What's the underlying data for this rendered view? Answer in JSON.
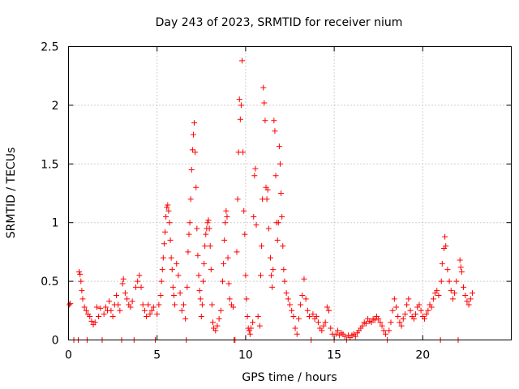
{
  "chart_data": {
    "type": "scatter",
    "title": "Day 243 of 2023, SRMTID for receiver nium",
    "xlabel": "GPS time / hours",
    "ylabel": "SRMTID / TECUs",
    "xlim": [
      0,
      25
    ],
    "ylim": [
      0,
      2.5
    ],
    "xticks": [
      "0",
      "5",
      "10",
      "15",
      "20"
    ],
    "xtick_values": [
      0,
      5,
      10,
      15,
      20
    ],
    "yticks": [
      "0",
      "0.5",
      "1",
      "1.5",
      "2",
      "2.5"
    ],
    "ytick_values": [
      0,
      0.5,
      1,
      1.5,
      2,
      2.5
    ],
    "grid": true,
    "marker": "+",
    "color": "#ff0000",
    "series": [
      {
        "name": "SRMTID",
        "points": [
          [
            0.05,
            0.3
          ],
          [
            0.1,
            0.31
          ],
          [
            0.3,
            0.0
          ],
          [
            0.55,
            0.0
          ],
          [
            0.6,
            0.58
          ],
          [
            0.65,
            0.56
          ],
          [
            0.7,
            0.5
          ],
          [
            0.75,
            0.42
          ],
          [
            0.8,
            0.35
          ],
          [
            0.9,
            0.28
          ],
          [
            1.0,
            0.25
          ],
          [
            1.05,
            0.0
          ],
          [
            1.1,
            0.22
          ],
          [
            1.2,
            0.2
          ],
          [
            1.3,
            0.16
          ],
          [
            1.4,
            0.13
          ],
          [
            1.5,
            0.15
          ],
          [
            1.6,
            0.28
          ],
          [
            1.7,
            0.2
          ],
          [
            1.8,
            0.27
          ],
          [
            1.9,
            0.0
          ],
          [
            2.0,
            0.22
          ],
          [
            2.1,
            0.28
          ],
          [
            2.2,
            0.25
          ],
          [
            2.3,
            0.33
          ],
          [
            2.4,
            0.25
          ],
          [
            2.5,
            0.2
          ],
          [
            2.6,
            0.3
          ],
          [
            2.7,
            0.38
          ],
          [
            2.8,
            0.3
          ],
          [
            2.9,
            0.25
          ],
          [
            3.0,
            0.0
          ],
          [
            3.05,
            0.48
          ],
          [
            3.1,
            0.52
          ],
          [
            3.2,
            0.4
          ],
          [
            3.3,
            0.35
          ],
          [
            3.4,
            0.3
          ],
          [
            3.5,
            0.28
          ],
          [
            3.6,
            0.33
          ],
          [
            3.7,
            0.0
          ],
          [
            3.8,
            0.45
          ],
          [
            3.9,
            0.5
          ],
          [
            4.0,
            0.55
          ],
          [
            4.1,
            0.45
          ],
          [
            4.2,
            0.3
          ],
          [
            4.3,
            0.25
          ],
          [
            4.4,
            0.2
          ],
          [
            4.5,
            0.3
          ],
          [
            4.6,
            0.22
          ],
          [
            4.7,
            0.25
          ],
          [
            4.8,
            0.28
          ],
          [
            4.9,
            0.0
          ],
          [
            5.0,
            0.22
          ],
          [
            5.1,
            0.3
          ],
          [
            5.2,
            0.38
          ],
          [
            5.25,
            0.5
          ],
          [
            5.3,
            0.6
          ],
          [
            5.35,
            0.7
          ],
          [
            5.4,
            0.82
          ],
          [
            5.45,
            0.92
          ],
          [
            5.5,
            1.05
          ],
          [
            5.55,
            1.13
          ],
          [
            5.6,
            1.15
          ],
          [
            5.65,
            1.1
          ],
          [
            5.7,
            1.0
          ],
          [
            5.75,
            0.85
          ],
          [
            5.8,
            0.7
          ],
          [
            5.85,
            0.6
          ],
          [
            5.9,
            0.45
          ],
          [
            5.95,
            0.38
          ],
          [
            6.0,
            0.3
          ],
          [
            6.1,
            0.65
          ],
          [
            6.2,
            0.55
          ],
          [
            6.3,
            0.4
          ],
          [
            6.4,
            0.25
          ],
          [
            6.5,
            0.3
          ],
          [
            6.6,
            0.18
          ],
          [
            6.65,
            0.0
          ],
          [
            6.7,
            0.45
          ],
          [
            6.75,
            0.75
          ],
          [
            6.8,
            0.9
          ],
          [
            6.85,
            1.0
          ],
          [
            6.9,
            1.2
          ],
          [
            6.95,
            1.45
          ],
          [
            7.0,
            1.62
          ],
          [
            7.05,
            1.75
          ],
          [
            7.1,
            1.85
          ],
          [
            7.15,
            1.6
          ],
          [
            7.2,
            1.3
          ],
          [
            7.25,
            0.95
          ],
          [
            7.3,
            0.72
          ],
          [
            7.35,
            0.55
          ],
          [
            7.4,
            0.42
          ],
          [
            7.45,
            0.35
          ],
          [
            7.5,
            0.2
          ],
          [
            7.55,
            0.3
          ],
          [
            7.6,
            0.5
          ],
          [
            7.65,
            0.65
          ],
          [
            7.7,
            0.8
          ],
          [
            7.75,
            0.9
          ],
          [
            7.8,
            0.95
          ],
          [
            7.85,
            1.0
          ],
          [
            7.9,
            1.02
          ],
          [
            7.95,
            0.95
          ],
          [
            8.0,
            0.8
          ],
          [
            8.05,
            0.6
          ],
          [
            8.1,
            0.3
          ],
          [
            8.15,
            0.15
          ],
          [
            8.2,
            0.1
          ],
          [
            8.3,
            0.08
          ],
          [
            8.4,
            0.12
          ],
          [
            8.5,
            0.18
          ],
          [
            8.6,
            0.25
          ],
          [
            8.7,
            0.5
          ],
          [
            8.75,
            0.65
          ],
          [
            8.8,
            0.85
          ],
          [
            8.85,
            1.0
          ],
          [
            8.9,
            1.1
          ],
          [
            8.95,
            1.05
          ],
          [
            9.0,
            0.7
          ],
          [
            9.05,
            0.48
          ],
          [
            9.1,
            0.35
          ],
          [
            9.2,
            0.3
          ],
          [
            9.3,
            0.28
          ],
          [
            9.35,
            0.0
          ],
          [
            9.4,
            0.0
          ],
          [
            9.5,
            0.75
          ],
          [
            9.55,
            1.2
          ],
          [
            9.6,
            1.6
          ],
          [
            9.65,
            2.05
          ],
          [
            9.7,
            1.88
          ],
          [
            9.75,
            2.0
          ],
          [
            9.8,
            2.38
          ],
          [
            9.85,
            1.6
          ],
          [
            9.9,
            1.1
          ],
          [
            9.95,
            0.9
          ],
          [
            10.0,
            0.55
          ],
          [
            10.05,
            0.35
          ],
          [
            10.1,
            0.2
          ],
          [
            10.15,
            0.1
          ],
          [
            10.2,
            0.08
          ],
          [
            10.25,
            0.05
          ],
          [
            10.3,
            0.1
          ],
          [
            10.4,
            0.15
          ],
          [
            10.45,
            1.05
          ],
          [
            10.5,
            1.4
          ],
          [
            10.55,
            1.46
          ],
          [
            10.6,
            0.98
          ],
          [
            10.7,
            0.2
          ],
          [
            10.8,
            0.12
          ],
          [
            10.85,
            0.55
          ],
          [
            10.9,
            0.8
          ],
          [
            10.95,
            1.2
          ],
          [
            11.0,
            2.15
          ],
          [
            11.05,
            2.02
          ],
          [
            11.1,
            1.87
          ],
          [
            11.15,
            1.3
          ],
          [
            11.2,
            1.2
          ],
          [
            11.25,
            1.28
          ],
          [
            11.3,
            0.95
          ],
          [
            11.4,
            0.7
          ],
          [
            11.45,
            0.55
          ],
          [
            11.5,
            0.45
          ],
          [
            11.55,
            0.6
          ],
          [
            11.6,
            1.87
          ],
          [
            11.65,
            1.78
          ],
          [
            11.7,
            1.4
          ],
          [
            11.75,
            1.0
          ],
          [
            11.8,
            0.85
          ],
          [
            11.85,
            1.0
          ],
          [
            11.9,
            1.65
          ],
          [
            11.95,
            1.5
          ],
          [
            12.0,
            1.25
          ],
          [
            12.05,
            1.05
          ],
          [
            12.1,
            0.8
          ],
          [
            12.15,
            0.6
          ],
          [
            12.2,
            0.5
          ],
          [
            12.3,
            0.4
          ],
          [
            12.4,
            0.35
          ],
          [
            12.5,
            0.3
          ],
          [
            12.6,
            0.25
          ],
          [
            12.7,
            0.2
          ],
          [
            12.8,
            0.1
          ],
          [
            12.9,
            0.05
          ],
          [
            13.0,
            0.18
          ],
          [
            13.1,
            0.3
          ],
          [
            13.2,
            0.38
          ],
          [
            13.3,
            0.52
          ],
          [
            13.4,
            0.35
          ],
          [
            13.5,
            0.25
          ],
          [
            13.6,
            0.2
          ],
          [
            13.7,
            0.0
          ],
          [
            13.8,
            0.22
          ],
          [
            13.9,
            0.18
          ],
          [
            14.0,
            0.2
          ],
          [
            14.1,
            0.15
          ],
          [
            14.2,
            0.1
          ],
          [
            14.3,
            0.08
          ],
          [
            14.4,
            0.12
          ],
          [
            14.5,
            0.15
          ],
          [
            14.6,
            0.28
          ],
          [
            14.7,
            0.25
          ],
          [
            14.8,
            0.1
          ],
          [
            14.9,
            0.05
          ],
          [
            15.0,
            0.0
          ],
          [
            15.1,
            0.05
          ],
          [
            15.2,
            0.08
          ],
          [
            15.3,
            0.04
          ],
          [
            15.4,
            0.06
          ],
          [
            15.5,
            0.05
          ],
          [
            15.6,
            0.03
          ],
          [
            15.7,
            0.0
          ],
          [
            15.8,
            0.04
          ],
          [
            15.9,
            0.02
          ],
          [
            16.0,
            0.04
          ],
          [
            16.1,
            0.05
          ],
          [
            16.2,
            0.03
          ],
          [
            16.3,
            0.06
          ],
          [
            16.4,
            0.08
          ],
          [
            16.5,
            0.1
          ],
          [
            16.6,
            0.12
          ],
          [
            16.7,
            0.15
          ],
          [
            16.8,
            0.14
          ],
          [
            16.9,
            0.18
          ],
          [
            17.0,
            0.16
          ],
          [
            17.1,
            0.15
          ],
          [
            17.2,
            0.18
          ],
          [
            17.3,
            0.17
          ],
          [
            17.4,
            0.2
          ],
          [
            17.5,
            0.18
          ],
          [
            17.6,
            0.15
          ],
          [
            17.7,
            0.12
          ],
          [
            17.8,
            0.08
          ],
          [
            17.9,
            0.05
          ],
          [
            18.0,
            0.0
          ],
          [
            18.1,
            0.08
          ],
          [
            18.2,
            0.15
          ],
          [
            18.3,
            0.25
          ],
          [
            18.4,
            0.35
          ],
          [
            18.5,
            0.28
          ],
          [
            18.6,
            0.2
          ],
          [
            18.7,
            0.15
          ],
          [
            18.8,
            0.12
          ],
          [
            18.9,
            0.18
          ],
          [
            19.0,
            0.22
          ],
          [
            19.1,
            0.3
          ],
          [
            19.2,
            0.35
          ],
          [
            19.3,
            0.25
          ],
          [
            19.4,
            0.2
          ],
          [
            19.5,
            0.18
          ],
          [
            19.6,
            0.22
          ],
          [
            19.7,
            0.28
          ],
          [
            19.8,
            0.3
          ],
          [
            19.9,
            0.25
          ],
          [
            20.0,
            0.2
          ],
          [
            20.1,
            0.18
          ],
          [
            20.2,
            0.22
          ],
          [
            20.3,
            0.25
          ],
          [
            20.4,
            0.3
          ],
          [
            20.5,
            0.28
          ],
          [
            20.6,
            0.35
          ],
          [
            20.7,
            0.4
          ],
          [
            20.8,
            0.42
          ],
          [
            20.9,
            0.38
          ],
          [
            21.0,
            0.0
          ],
          [
            21.05,
            0.5
          ],
          [
            21.1,
            0.65
          ],
          [
            21.2,
            0.78
          ],
          [
            21.25,
            0.88
          ],
          [
            21.3,
            0.8
          ],
          [
            21.4,
            0.6
          ],
          [
            21.5,
            0.5
          ],
          [
            21.6,
            0.42
          ],
          [
            21.7,
            0.35
          ],
          [
            21.8,
            0.4
          ],
          [
            21.9,
            0.5
          ],
          [
            22.0,
            0.0
          ],
          [
            22.1,
            0.68
          ],
          [
            22.15,
            0.62
          ],
          [
            22.2,
            0.58
          ],
          [
            22.3,
            0.45
          ],
          [
            22.4,
            0.38
          ],
          [
            22.5,
            0.33
          ],
          [
            22.6,
            0.3
          ],
          [
            22.7,
            0.35
          ],
          [
            22.8,
            0.4
          ]
        ]
      }
    ]
  }
}
